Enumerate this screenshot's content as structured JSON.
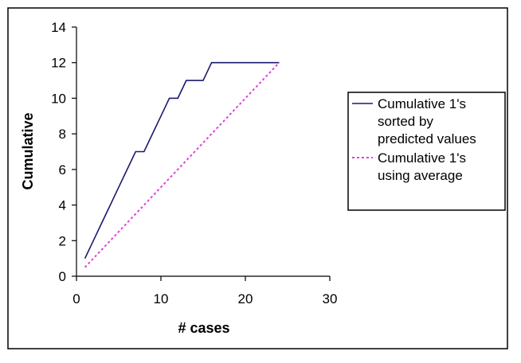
{
  "chart_data": {
    "type": "line",
    "xlabel": "# cases",
    "ylabel": "Cumulative",
    "xlim": [
      0,
      30
    ],
    "ylim": [
      0,
      14
    ],
    "xticks": [
      0,
      10,
      20,
      30
    ],
    "yticks": [
      0,
      2,
      4,
      6,
      8,
      10,
      12,
      14
    ],
    "grid": false,
    "legend_position": "right",
    "series": [
      {
        "name": "Cumulative 1's sorted by predicted values",
        "legend_lines": [
          "Cumulative 1's",
          "sorted by",
          "predicted values"
        ],
        "color": "#1a1a6e",
        "style": "solid",
        "x": [
          1,
          2,
          3,
          4,
          5,
          6,
          7,
          8,
          9,
          10,
          11,
          12,
          13,
          14,
          15,
          16,
          17,
          18,
          19,
          20,
          21,
          22,
          23,
          24
        ],
        "y": [
          1,
          2,
          3,
          4,
          5,
          6,
          7,
          7,
          8,
          9,
          10,
          10,
          11,
          11,
          11,
          12,
          12,
          12,
          12,
          12,
          12,
          12,
          12,
          12
        ]
      },
      {
        "name": "Cumulative 1's using average",
        "legend_lines": [
          "Cumulative 1's",
          "using average"
        ],
        "color": "#e040e0",
        "style": "dotted",
        "x": [
          1,
          2,
          3,
          4,
          5,
          6,
          7,
          8,
          9,
          10,
          11,
          12,
          13,
          14,
          15,
          16,
          17,
          18,
          19,
          20,
          21,
          22,
          23,
          24
        ],
        "y": [
          0.5,
          1,
          1.5,
          2,
          2.5,
          3,
          3.5,
          4,
          4.5,
          5,
          5.5,
          6,
          6.5,
          7,
          7.5,
          8,
          8.5,
          9,
          9.5,
          10,
          10.5,
          11,
          11.5,
          12
        ]
      }
    ]
  }
}
